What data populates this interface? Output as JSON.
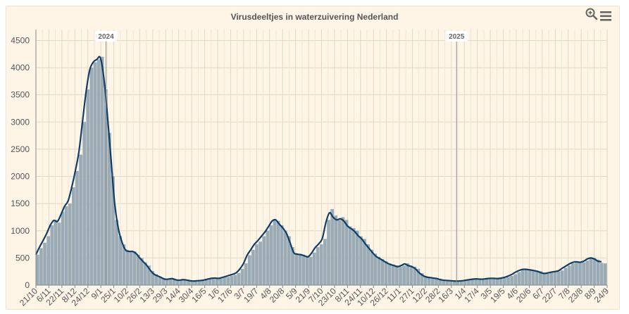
{
  "chart_data": {
    "type": "bar",
    "title": "Virusdeeltjes in waterzuivering Nederland",
    "ylim": [
      0,
      4700
    ],
    "y_ticks": [
      0,
      500,
      1000,
      1500,
      2000,
      2500,
      3000,
      3500,
      4000,
      4500
    ],
    "x_tick_labels": [
      "21/10",
      "6/11",
      "22/11",
      "8/12",
      "24/12",
      "9/1",
      "25/1",
      "10/2",
      "26/2",
      "13/3",
      "29/3",
      "14/4",
      "30/4",
      "16/5",
      "1/6",
      "17/6",
      "3/7",
      "19/7",
      "4/8",
      "20/8",
      "5/9",
      "21/9",
      "7/10",
      "23/10",
      "8/11",
      "24/11",
      "10/12",
      "26/12",
      "11/1",
      "27/1",
      "12/2",
      "28/2",
      "16/3",
      "1/4",
      "17/4",
      "3/5",
      "19/5",
      "4/6",
      "20/6",
      "6/7",
      "22/7",
      "7/8",
      "23/8",
      "8/9",
      "24/9"
    ],
    "year_markers": [
      {
        "label": "2024",
        "x_index": 5.4
      },
      {
        "label": "2025",
        "x_index": 32.4
      }
    ],
    "series": [
      {
        "kind": "bar",
        "color": "#9aabb5",
        "values": [
          560,
          680,
          780,
          900,
          1100,
          1200,
          1150,
          1350,
          1450,
          1500,
          1800,
          2100,
          2400,
          3000,
          3600,
          4000,
          4100,
          4150,
          4200,
          3600,
          2800,
          2000,
          1200,
          900,
          750,
          650,
          620,
          620,
          560,
          500,
          420,
          360,
          260,
          200,
          160,
          130,
          100,
          110,
          120,
          100,
          90,
          100,
          100,
          80,
          70,
          80,
          80,
          90,
          110,
          120,
          130,
          120,
          140,
          150,
          170,
          190,
          220,
          300,
          400,
          550,
          650,
          750,
          800,
          900,
          1000,
          1100,
          1200,
          1180,
          1100,
          1000,
          900,
          700,
          580,
          560,
          560,
          540,
          520,
          600,
          700,
          750,
          850,
          1200,
          1400,
          1280,
          1200,
          1250,
          1200,
          1080,
          1050,
          1000,
          900,
          850,
          750,
          650,
          580,
          520,
          480,
          440,
          400,
          380,
          360,
          340,
          360,
          400,
          360,
          340,
          300,
          220,
          170,
          140,
          140,
          130,
          120,
          100,
          90,
          80,
          80,
          70,
          70,
          80,
          90,
          100,
          110,
          120,
          110,
          110,
          120,
          130,
          130,
          120,
          130,
          150,
          170,
          200,
          240,
          280,
          300,
          290,
          280,
          270,
          260,
          230,
          210,
          230,
          240,
          250,
          270,
          320,
          360,
          400,
          430,
          430,
          420,
          450,
          490,
          500,
          470,
          410,
          400
        ]
      },
      {
        "kind": "line",
        "color": "#0e3f69",
        "values": [
          560,
          700,
          820,
          950,
          1100,
          1190,
          1170,
          1300,
          1450,
          1550,
          1800,
          2100,
          2450,
          3000,
          3550,
          3950,
          4100,
          4150,
          4180,
          3800,
          3100,
          2300,
          1500,
          1050,
          800,
          650,
          620,
          620,
          580,
          500,
          430,
          360,
          270,
          200,
          170,
          140,
          110,
          110,
          120,
          100,
          90,
          100,
          95,
          80,
          75,
          80,
          85,
          95,
          110,
          125,
          130,
          125,
          140,
          160,
          180,
          200,
          230,
          300,
          400,
          550,
          650,
          750,
          820,
          900,
          980,
          1080,
          1180,
          1200,
          1120,
          1050,
          950,
          780,
          600,
          570,
          560,
          540,
          520,
          590,
          690,
          760,
          860,
          1150,
          1330,
          1250,
          1200,
          1220,
          1180,
          1090,
          1040,
          990,
          910,
          850,
          760,
          680,
          600,
          530,
          490,
          450,
          410,
          380,
          360,
          340,
          360,
          390,
          360,
          340,
          300,
          230,
          180,
          150,
          140,
          130,
          120,
          100,
          90,
          85,
          80,
          75,
          75,
          80,
          90,
          100,
          110,
          115,
          110,
          110,
          120,
          125,
          125,
          120,
          130,
          145,
          170,
          200,
          240,
          270,
          290,
          290,
          280,
          270,
          255,
          230,
          215,
          225,
          240,
          250,
          265,
          310,
          350,
          390,
          420,
          430,
          420,
          440,
          480,
          500,
          480,
          440,
          430
        ]
      }
    ]
  },
  "toolbar": {
    "zoom_icon": "magnifier-plus-icon",
    "menu_icon": "hamburger-menu-icon"
  }
}
